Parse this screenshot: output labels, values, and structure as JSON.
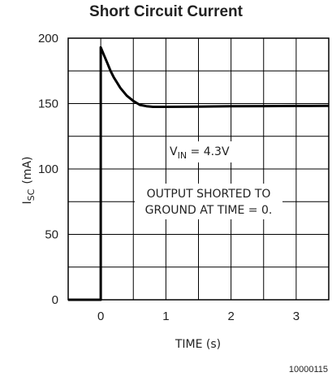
{
  "chart_data": {
    "type": "line",
    "title": "Short Circuit Current",
    "xlabel": "TIME (s)",
    "ylabel_main": "I",
    "ylabel_sub": "SC",
    "ylabel_unit": "(mA)",
    "xlim": [
      -0.5,
      3.5
    ],
    "ylim": [
      0,
      200
    ],
    "x_ticks": [
      0,
      1,
      2,
      3
    ],
    "y_ticks": [
      0,
      50,
      100,
      150,
      200
    ],
    "grid": true,
    "series": [
      {
        "x": [
          -0.5,
          0,
          0,
          0.05,
          0.1,
          0.15,
          0.2,
          0.25,
          0.3,
          0.4,
          0.5,
          0.6,
          0.7,
          0.8,
          1.0,
          1.5,
          2.0,
          2.5,
          3.0,
          3.5
        ],
        "y": [
          0,
          0,
          193,
          187,
          181,
          175,
          170,
          166,
          162,
          156,
          152,
          149,
          148,
          147.5,
          147.5,
          147.7,
          148,
          148.1,
          148.2,
          148.3
        ]
      }
    ],
    "annotations": {
      "vin_main": "V",
      "vin_sub": "IN",
      "vin_rest": " = 4.3V",
      "note_line1": "OUTPUT SHORTED TO",
      "note_line2": "GROUND AT TIME = 0."
    },
    "figure_id": "10000115"
  }
}
